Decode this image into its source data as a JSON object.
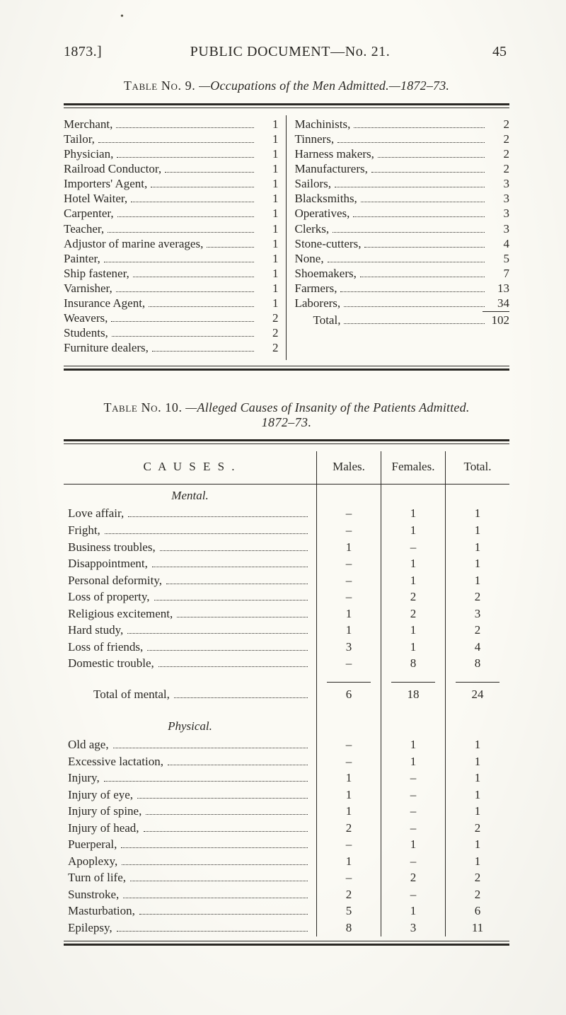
{
  "header": {
    "year": "1873.]",
    "title": "PUBLIC DOCUMENT—No. 21.",
    "page": "45"
  },
  "table9": {
    "caption_prefix": "Table No. 9.",
    "caption_rest": "—Occupations of the Men Admitted.—1872–73.",
    "left": [
      {
        "label": "Merchant,",
        "value": "1"
      },
      {
        "label": "Tailor,",
        "value": "1"
      },
      {
        "label": "Physician,",
        "value": "1"
      },
      {
        "label": "Railroad Conductor,",
        "value": "1"
      },
      {
        "label": "Importers' Agent,",
        "value": "1"
      },
      {
        "label": "Hotel Waiter,",
        "value": "1"
      },
      {
        "label": "Carpenter,",
        "value": "1"
      },
      {
        "label": "Teacher,",
        "value": "1"
      },
      {
        "label": "Adjustor of marine averages,",
        "value": "1"
      },
      {
        "label": "Painter,",
        "value": "1"
      },
      {
        "label": "Ship fastener,",
        "value": "1"
      },
      {
        "label": "Varnisher,",
        "value": "1"
      },
      {
        "label": "Insurance Agent,",
        "value": "1"
      },
      {
        "label": "Weavers,",
        "value": "2"
      },
      {
        "label": "Students,",
        "value": "2"
      },
      {
        "label": "Furniture dealers,",
        "value": "2"
      }
    ],
    "right": [
      {
        "label": "Machinists,",
        "value": "2"
      },
      {
        "label": "Tinners,",
        "value": "2"
      },
      {
        "label": "Harness makers,",
        "value": "2"
      },
      {
        "label": "Manufacturers,",
        "value": "2"
      },
      {
        "label": "Sailors,",
        "value": "3"
      },
      {
        "label": "Blacksmiths,",
        "value": "3"
      },
      {
        "label": "Operatives,",
        "value": "3"
      },
      {
        "label": "Clerks,",
        "value": "3"
      },
      {
        "label": "Stone-cutters,",
        "value": "4"
      },
      {
        "label": "None,",
        "value": "5"
      },
      {
        "label": "Shoemakers,",
        "value": "7"
      },
      {
        "label": "Farmers,",
        "value": "13"
      },
      {
        "label": "Laborers,",
        "value": "34"
      }
    ],
    "total_label": "Total,",
    "total_value": "102"
  },
  "table10": {
    "caption_prefix": "Table No. 10.",
    "caption_rest": "—Alleged Causes of Insanity of the Patients Admitted.",
    "caption_year": "1872–73.",
    "columns": {
      "c1": "C A U S E S .",
      "c2": "Males.",
      "c3": "Females.",
      "c4": "Total."
    },
    "sections": [
      {
        "title": "Mental.",
        "rows": [
          {
            "label": "Love affair,",
            "m": "–",
            "f": "1",
            "t": "1"
          },
          {
            "label": "Fright,",
            "m": "–",
            "f": "1",
            "t": "1"
          },
          {
            "label": "Business troubles,",
            "m": "1",
            "f": "–",
            "t": "1"
          },
          {
            "label": "Disappointment,",
            "m": "–",
            "f": "1",
            "t": "1"
          },
          {
            "label": "Personal deformity,",
            "m": "–",
            "f": "1",
            "t": "1"
          },
          {
            "label": "Loss of property,",
            "m": "–",
            "f": "2",
            "t": "2"
          },
          {
            "label": "Religious excitement,",
            "m": "1",
            "f": "2",
            "t": "3"
          },
          {
            "label": "Hard study,",
            "m": "1",
            "f": "1",
            "t": "2"
          },
          {
            "label": "Loss of friends,",
            "m": "3",
            "f": "1",
            "t": "4"
          },
          {
            "label": "Domestic trouble,",
            "m": "–",
            "f": "8",
            "t": "8"
          }
        ],
        "subtotal": {
          "label": "Total of mental,",
          "m": "6",
          "f": "18",
          "t": "24"
        }
      },
      {
        "title": "Physical.",
        "rows": [
          {
            "label": "Old age,",
            "m": "–",
            "f": "1",
            "t": "1"
          },
          {
            "label": "Excessive lactation,",
            "m": "–",
            "f": "1",
            "t": "1"
          },
          {
            "label": "Injury,",
            "m": "1",
            "f": "–",
            "t": "1"
          },
          {
            "label": "Injury of eye,",
            "m": "1",
            "f": "–",
            "t": "1"
          },
          {
            "label": "Injury of spine,",
            "m": "1",
            "f": "–",
            "t": "1"
          },
          {
            "label": "Injury of head,",
            "m": "2",
            "f": "–",
            "t": "2"
          },
          {
            "label": "Puerperal,",
            "m": "–",
            "f": "1",
            "t": "1"
          },
          {
            "label": "Apoplexy,",
            "m": "1",
            "f": "–",
            "t": "1"
          },
          {
            "label": "Turn of life,",
            "m": "–",
            "f": "2",
            "t": "2"
          },
          {
            "label": "Sunstroke,",
            "m": "2",
            "f": "–",
            "t": "2"
          },
          {
            "label": "Masturbation,",
            "m": "5",
            "f": "1",
            "t": "6"
          },
          {
            "label": "Epilepsy,",
            "m": "8",
            "f": "3",
            "t": "11"
          }
        ]
      }
    ]
  }
}
